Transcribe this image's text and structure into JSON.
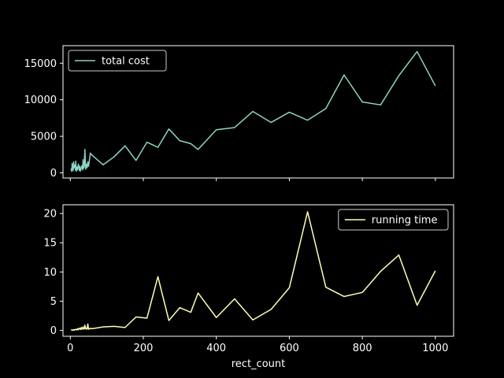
{
  "chart_data": [
    {
      "type": "line",
      "title": "",
      "xlabel": "",
      "ylabel": "",
      "xlim": [
        -20,
        1050
      ],
      "ylim": [
        -700,
        17400
      ],
      "xticks": [
        0,
        200,
        400,
        600,
        800,
        1000
      ],
      "yticks": [
        0,
        5000,
        10000,
        15000
      ],
      "ytick_labels": [
        "0",
        "5000",
        "10000",
        "15000"
      ],
      "grid": false,
      "legend_position": "upper-left",
      "series": [
        {
          "name": "total cost",
          "color": "#8dd3c7",
          "x": [
            2,
            4,
            5,
            6,
            7,
            8,
            9,
            10,
            12,
            14,
            15,
            16,
            18,
            20,
            22,
            24,
            25,
            26,
            28,
            30,
            32,
            34,
            35,
            36,
            38,
            40,
            42,
            44,
            45,
            46,
            48,
            50,
            55,
            60,
            90,
            120,
            150,
            180,
            210,
            240,
            270,
            300,
            330,
            350,
            400,
            450,
            500,
            550,
            600,
            650,
            700,
            750,
            800,
            850,
            900,
            950,
            1000
          ],
          "y": [
            600,
            200,
            1300,
            500,
            900,
            300,
            1500,
            700,
            1100,
            400,
            1600,
            200,
            800,
            400,
            1200,
            600,
            300,
            900,
            250,
            700,
            1000,
            400,
            1800,
            600,
            800,
            3200,
            500,
            1200,
            900,
            700,
            1500,
            900,
            2700,
            2400,
            1100,
            2200,
            3700,
            1700,
            4200,
            3500,
            6000,
            4400,
            4000,
            3200,
            5900,
            6200,
            8400,
            6900,
            8300,
            7200,
            8800,
            13400,
            9700,
            9300,
            13300,
            16600,
            11900
          ]
        }
      ]
    },
    {
      "type": "line",
      "title": "",
      "xlabel": "rect_count",
      "ylabel": "",
      "xlim": [
        -20,
        1050
      ],
      "ylim": [
        -1.0,
        21.5
      ],
      "xticks": [
        0,
        200,
        400,
        600,
        800,
        1000
      ],
      "xtick_labels": [
        "0",
        "200",
        "400",
        "600",
        "800",
        "1000"
      ],
      "yticks": [
        0,
        5,
        10,
        15,
        20
      ],
      "ytick_labels": [
        "0",
        "5",
        "10",
        "15",
        "20"
      ],
      "grid": false,
      "legend_position": "upper-right",
      "series": [
        {
          "name": "running time",
          "color": "#ffffb3",
          "x": [
            2,
            5,
            8,
            10,
            12,
            15,
            18,
            20,
            22,
            25,
            28,
            30,
            32,
            35,
            36,
            38,
            40,
            42,
            44,
            45,
            46,
            48,
            50,
            55,
            60,
            90,
            120,
            150,
            180,
            210,
            240,
            270,
            300,
            330,
            350,
            400,
            450,
            500,
            550,
            600,
            650,
            700,
            750,
            800,
            850,
            900,
            950,
            1000
          ],
          "y": [
            0.05,
            0.1,
            0.0,
            0.15,
            0.05,
            0.2,
            0.1,
            0.3,
            0.1,
            0.4,
            0.15,
            0.5,
            0.2,
            0.6,
            0.3,
            0.2,
            0.9,
            0.3,
            0.4,
            0.2,
            0.3,
            1.1,
            0.2,
            0.35,
            0.3,
            0.6,
            0.7,
            0.5,
            2.3,
            2.1,
            9.2,
            1.7,
            3.9,
            3.1,
            6.4,
            2.2,
            5.4,
            1.8,
            3.6,
            7.3,
            20.3,
            7.4,
            5.8,
            6.5,
            10.1,
            12.9,
            4.3,
            10.2
          ]
        }
      ]
    }
  ]
}
